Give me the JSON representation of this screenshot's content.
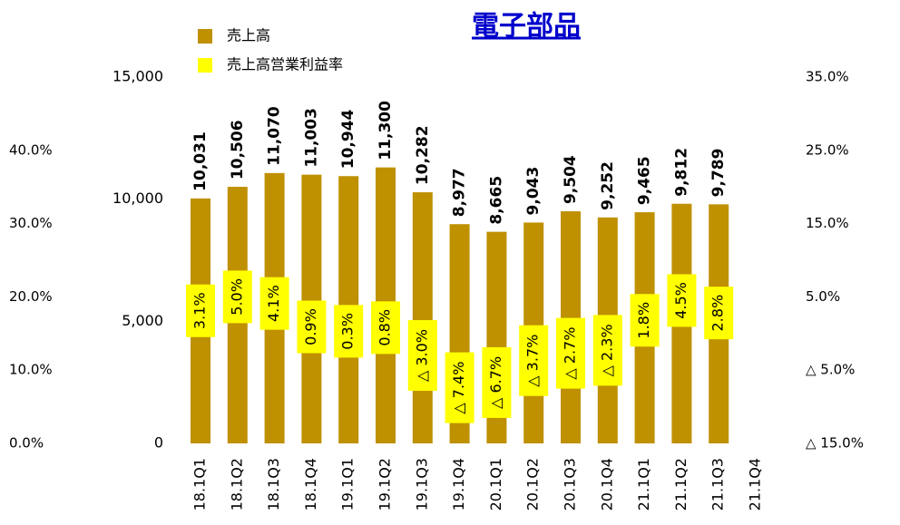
{
  "chart_data": {
    "type": "bar",
    "title": "電子部品",
    "categories": [
      "18.1Q1",
      "18.1Q2",
      "18.1Q3",
      "18.1Q4",
      "19.1Q1",
      "19.1Q2",
      "19.1Q3",
      "19.1Q4",
      "20.1Q1",
      "20.1Q2",
      "20.1Q3",
      "20.1Q4",
      "21.1Q1",
      "21.1Q2",
      "21.1Q3",
      "21.1Q4"
    ],
    "series": [
      {
        "name": "売上高",
        "color": "#bf9000",
        "axis": "y",
        "values": [
          10031,
          10506,
          11070,
          11003,
          10944,
          11300,
          10282,
          8977,
          8665,
          9043,
          9504,
          9252,
          9465,
          9812,
          9789,
          null
        ],
        "value_labels": [
          "10,031",
          "10,506",
          "11,070",
          "11,003",
          "10,944",
          "11,300",
          "10,282",
          "8,977",
          "8,665",
          "9,043",
          "9,504",
          "9,252",
          "9,465",
          "9,812",
          "9,789",
          null
        ]
      },
      {
        "name": "売上高営業利益率",
        "color": "#ffff00",
        "axis": "y2",
        "negative_color": "#ff0000",
        "values": [
          3.1,
          5.0,
          4.1,
          0.9,
          0.3,
          0.8,
          -3.0,
          -7.4,
          -6.7,
          -3.7,
          -2.7,
          -2.3,
          1.8,
          4.5,
          2.8,
          null
        ],
        "value_labels": [
          "3.1%",
          "5.0%",
          "4.1%",
          "0.9%",
          "0.3%",
          "0.8%",
          "△ 3.0%",
          "△ 7.4%",
          "△ 6.7%",
          "△ 3.7%",
          "△ 2.7%",
          "△ 2.3%",
          "1.8%",
          "4.5%",
          "2.8%",
          null
        ]
      }
    ],
    "ylim": [
      0,
      15000
    ],
    "yticks": [
      0,
      {
        "value": 5000,
        "label": "5,000"
      },
      {
        "value": 10000,
        "label": "10,000"
      },
      {
        "value": 15000,
        "label": "15,000"
      }
    ],
    "y2lim": [
      -15,
      35
    ],
    "y2ticks": [
      {
        "value": -15,
        "label": "△ 15.0%"
      },
      {
        "value": -5,
        "label": "△ 5.0%"
      },
      {
        "value": 5,
        "label": "5.0%"
      },
      {
        "value": 15,
        "label": "15.0%"
      },
      {
        "value": 25,
        "label": "25.0%"
      },
      {
        "value": 35,
        "label": "35.0%"
      }
    ],
    "y3lim": [
      0,
      50
    ],
    "y3ticks": [
      {
        "value": 0,
        "label": "0.0%"
      },
      {
        "value": 10,
        "label": "10.0%"
      },
      {
        "value": 20,
        "label": "20.0%"
      },
      {
        "value": 30,
        "label": "30.0%"
      },
      {
        "value": 40,
        "label": "40.0%"
      }
    ]
  }
}
